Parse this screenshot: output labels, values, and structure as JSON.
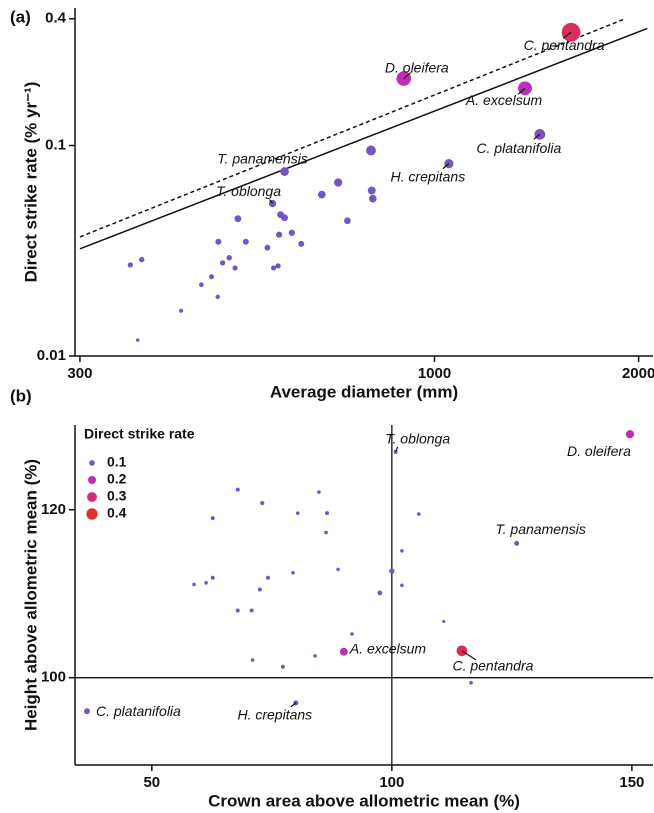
{
  "chart_data": [
    {
      "type": "scatter",
      "panel": "(a)",
      "x_label": "Average diameter (mm)",
      "y_label": "Direct strike rate (% yr⁻¹)",
      "xscale": "log",
      "yscale": "log",
      "xlim": [
        295,
        2100
      ],
      "ylim": [
        0.01,
        0.45
      ],
      "xticks": [
        300,
        1000,
        2000
      ],
      "yticks": [
        0.01,
        0.1,
        0.4
      ],
      "series": [
        {
          "x": [
            356,
            370,
            365,
            423,
            453,
            469,
            479,
            480,
            487,
            498,
            508,
            513,
            527,
            567,
            577,
            579,
            588,
            590,
            593,
            601,
            601,
            616,
            636,
            682,
            721,
            744,
            806,
            808,
            811,
            901,
            1050,
            1360,
            1430,
            1590
          ],
          "values": [
            0.0271,
            0.0287,
            0.0119,
            0.0164,
            0.0218,
            0.0238,
            0.0191,
            0.0349,
            0.0277,
            0.0293,
            0.0262,
            0.0449,
            0.0349,
            0.0327,
            0.053,
            0.0262,
            0.0268,
            0.0377,
            0.0469,
            0.0454,
            0.0752,
            0.0385,
            0.0341,
            0.0584,
            0.0667,
            0.0439,
            0.0947,
            0.0611,
            0.0559,
            0.208,
            0.082,
            0.187,
            0.113,
            0.345
          ]
        }
      ],
      "lines": [
        {
          "style": "solid",
          "x": [
            300,
            2060
          ],
          "y": [
            0.0323,
            0.36
          ]
        },
        {
          "style": "dashed",
          "x": [
            300,
            1910
          ],
          "y": [
            0.0368,
            0.4
          ]
        }
      ],
      "annotations": [
        "C. pentandra",
        "D. oleifera",
        "A. excelsum",
        "C. platanifolia",
        "T. panamensis",
        "H. crepitans",
        "T. oblonga"
      ]
    },
    {
      "type": "scatter",
      "panel": "(b)",
      "x_label": "Crown area above allometric mean (%)",
      "y_label": "Height above allometric mean (%)",
      "xlim": [
        34,
        154.4
      ],
      "ylim": [
        89.6,
        130.1
      ],
      "xticks": [
        50,
        100,
        150
      ],
      "yticks": [
        100,
        120
      ],
      "ref_lines": {
        "x": 100,
        "y": 100
      },
      "series": [
        {
          "x": [
            149.6,
            100.8,
            114.6,
            90.0,
            126.0,
            36.5,
            80.0,
            67.9,
            84.8,
            73.0,
            86.5,
            80.4,
            62.7,
            105.6,
            86.3,
            102.1,
            72.5,
            62.7,
            74.2,
            58.8,
            61.3,
            79.4,
            88.8,
            100.0,
            102.1,
            97.5,
            67.9,
            70.8,
            110.8,
            91.7,
            84.0,
            71.0,
            77.3,
            116.5
          ],
          "values": [
            129.0,
            126.9,
            103.2,
            103.1,
            116.0,
            96.0,
            97.0,
            122.4,
            122.1,
            120.8,
            119.6,
            119.6,
            119.0,
            119.5,
            117.3,
            115.1,
            110.5,
            111.9,
            111.9,
            111.1,
            111.3,
            112.5,
            112.9,
            112.7,
            111.0,
            110.1,
            108.0,
            108.0,
            106.7,
            105.2,
            102.6,
            102.1,
            101.3,
            99.4
          ],
          "sizes": [
            0.21,
            0.05,
            0.35,
            0.19,
            0.075,
            0.11,
            0.08,
            0.05,
            0.04,
            0.05,
            0.05,
            0.04,
            0.05,
            0.04,
            0.04,
            0.04,
            0.05,
            0.05,
            0.05,
            0.04,
            0.04,
            0.04,
            0.04,
            0.09,
            0.04,
            0.07,
            0.05,
            0.05,
            0.03,
            0.04,
            0.04,
            0.04,
            0.05,
            0.04
          ]
        }
      ],
      "annotations": [
        "D. oleifera",
        "T. oblonga",
        "C. pentandra",
        "A. excelsum",
        "T. panamensis",
        "C. platanifolia",
        "H. crepitans"
      ],
      "legend": {
        "title": "Direct strike rate",
        "values": [
          0.1,
          0.2,
          0.3,
          0.4
        ],
        "colors": [
          "#7356c4",
          "#c22cb8",
          "#d42a82",
          "#e0312e"
        ]
      }
    }
  ]
}
